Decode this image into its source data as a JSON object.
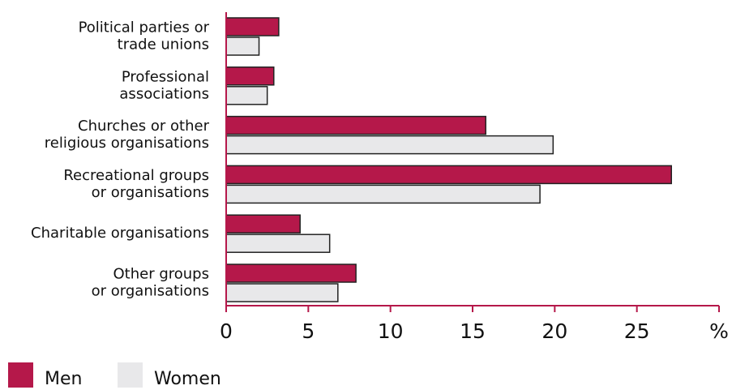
{
  "chart_data": {
    "type": "bar",
    "orientation": "horizontal",
    "categories": [
      [
        "Political parties or",
        "trade unions"
      ],
      [
        "Professional",
        "associations"
      ],
      [
        "Churches or other",
        "religious organisations"
      ],
      [
        "Recreational groups",
        "or organisations"
      ],
      [
        "Charitable organisations"
      ],
      [
        "Other groups",
        "or organisations"
      ]
    ],
    "series": [
      {
        "name": "Men",
        "color": "#b5184a",
        "values": [
          3.2,
          2.9,
          15.8,
          27.1,
          4.5,
          7.9
        ]
      },
      {
        "name": "Women",
        "color": "#e8e8ea",
        "values": [
          2.0,
          2.5,
          19.9,
          19.1,
          6.3,
          6.8
        ]
      }
    ],
    "xlim": [
      0,
      30
    ],
    "xticks": [
      0,
      5,
      10,
      15,
      20,
      25,
      {
        "value": 30,
        "label": "%"
      }
    ],
    "axis_color": "#b5184a",
    "grid": false,
    "legend": "bottom-left"
  }
}
